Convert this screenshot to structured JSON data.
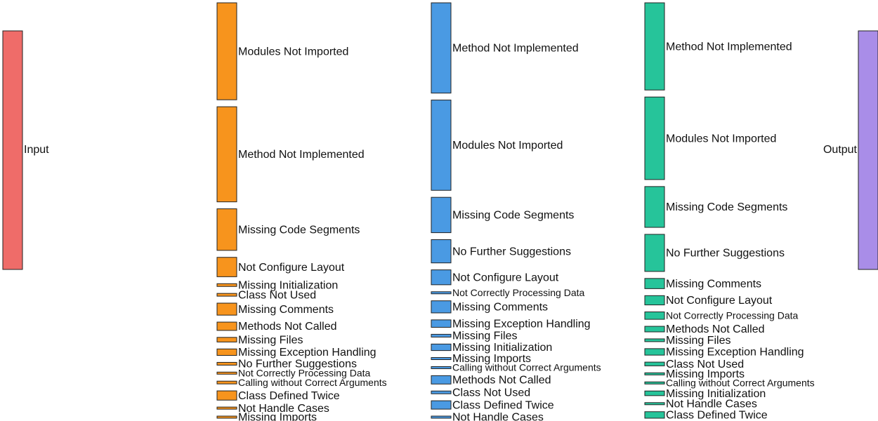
{
  "chart_data": {
    "type": "sankey",
    "colors": {
      "input": "#ef6c69",
      "stage1": "#f7941d",
      "stage2": "#4a9ae3",
      "stage3": "#26c49a",
      "output": "#a98de8"
    },
    "nodes": {
      "input": {
        "label": "Input"
      },
      "output": {
        "label": "Output"
      },
      "stage1": [
        {
          "label": "Modules Not Imported",
          "value": 105
        },
        {
          "label": "Method Not Implemented",
          "value": 103
        },
        {
          "label": "Missing Code Segments",
          "value": 45
        },
        {
          "label": "Not Configure Layout",
          "value": 21
        },
        {
          "label": "Missing Initialization",
          "value": 3
        },
        {
          "label": "Class Not Used",
          "value": 3
        },
        {
          "label": "Missing Comments",
          "value": 13
        },
        {
          "label": "Methods Not Called",
          "value": 9
        },
        {
          "label": "Missing Files",
          "value": 5
        },
        {
          "label": "Missing Exception Handling",
          "value": 7
        },
        {
          "label": "No Further Suggestions",
          "value": 3
        },
        {
          "label": "Not Correctly Processing Data",
          "value": 1
        },
        {
          "label": "Calling without Correct Arguments",
          "value": 3
        },
        {
          "label": "Class Defined Twice",
          "value": 10
        },
        {
          "label": "Not Handle Cases",
          "value": 1
        },
        {
          "label": "Missing Imports",
          "value": 1
        }
      ],
      "stage2": [
        {
          "label": "Method Not Implemented",
          "value": 97
        },
        {
          "label": "Modules Not Imported",
          "value": 97
        },
        {
          "label": "Missing Code Segments",
          "value": 38
        },
        {
          "label": "No Further Suggestions",
          "value": 25
        },
        {
          "label": "Not Configure Layout",
          "value": 16
        },
        {
          "label": "Not Correctly Processing Data",
          "value": 2
        },
        {
          "label": "Missing Comments",
          "value": 13
        },
        {
          "label": "Missing Exception Handling",
          "value": 8
        },
        {
          "label": "Missing Files",
          "value": 3
        },
        {
          "label": "Missing Initialization",
          "value": 7
        },
        {
          "label": "Missing Imports",
          "value": 1
        },
        {
          "label": "Calling without Correct Arguments",
          "value": 2
        },
        {
          "label": "Methods Not Called",
          "value": 9
        },
        {
          "label": "Class Not Used",
          "value": 3
        },
        {
          "label": "Class Defined Twice",
          "value": 9
        },
        {
          "label": "Not Handle Cases",
          "value": 1
        }
      ],
      "stage3": [
        {
          "label": "Method Not Implemented",
          "value": 94
        },
        {
          "label": "Modules Not Imported",
          "value": 89
        },
        {
          "label": "Missing Code Segments",
          "value": 44
        },
        {
          "label": "No Further Suggestions",
          "value": 40
        },
        {
          "label": "Missing Comments",
          "value": 11
        },
        {
          "label": "Not Configure Layout",
          "value": 10
        },
        {
          "label": "Not Correctly Processing Data",
          "value": 8
        },
        {
          "label": "Methods Not Called",
          "value": 6
        },
        {
          "label": "Missing Files",
          "value": 3
        },
        {
          "label": "Missing Exception Handling",
          "value": 7
        },
        {
          "label": "Class Not Used",
          "value": 4
        },
        {
          "label": "Missing Imports",
          "value": 2
        },
        {
          "label": "Calling without Correct Arguments",
          "value": 2
        },
        {
          "label": "Missing Initialization",
          "value": 5
        },
        {
          "label": "Not Handle Cases",
          "value": 1
        },
        {
          "label": "Class Defined Twice",
          "value": 7
        }
      ]
    }
  }
}
